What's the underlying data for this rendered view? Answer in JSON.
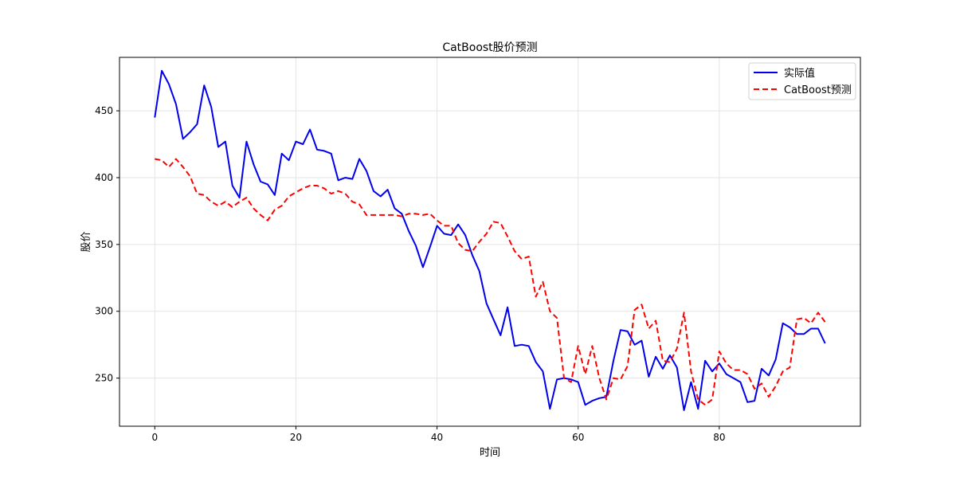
{
  "chart_data": {
    "type": "line",
    "title": "CatBoost股价预测",
    "xlabel": "时间",
    "ylabel": "股价",
    "xlim": [
      -5,
      100
    ],
    "ylim": [
      214,
      490
    ],
    "xticks": [
      0,
      20,
      40,
      60,
      80
    ],
    "yticks": [
      250,
      300,
      350,
      400,
      450
    ],
    "grid": true,
    "legend_position": "top-right",
    "series": [
      {
        "name": "实际值",
        "color": "#0000ee",
        "style": "solid",
        "x": [
          0,
          1,
          2,
          3,
          4,
          5,
          6,
          7,
          8,
          9,
          10,
          11,
          12,
          13,
          14,
          15,
          16,
          17,
          18,
          19,
          20,
          21,
          22,
          23,
          24,
          25,
          26,
          27,
          28,
          29,
          30,
          31,
          32,
          33,
          34,
          35,
          36,
          37,
          38,
          39,
          40,
          41,
          42,
          43,
          44,
          45,
          46,
          47,
          48,
          49,
          50,
          51,
          52,
          53,
          54,
          55,
          56,
          57,
          58,
          59,
          60,
          61,
          62,
          63,
          64,
          65,
          66,
          67,
          68,
          69,
          70,
          71,
          72,
          73,
          74,
          75,
          76,
          77,
          78,
          79,
          80,
          81,
          82,
          83,
          84,
          85,
          86,
          87,
          88,
          89,
          90,
          91,
          92,
          93,
          94,
          95
        ],
        "values": [
          445,
          480,
          470,
          455,
          429,
          434,
          440,
          469,
          453,
          423,
          427,
          394,
          385,
          427,
          410,
          397,
          395,
          387,
          418,
          413,
          427,
          425,
          436,
          421,
          420,
          418,
          398,
          400,
          399,
          414,
          405,
          390,
          386,
          391,
          377,
          373,
          360,
          349,
          333,
          348,
          364,
          358,
          357,
          365,
          357,
          342,
          330,
          306,
          294,
          282,
          303,
          274,
          275,
          274,
          262,
          255,
          227,
          249,
          250,
          249,
          247,
          230,
          233,
          235,
          236,
          263,
          286,
          285,
          275,
          278,
          251,
          266,
          257,
          267,
          258,
          226,
          247,
          227,
          263,
          255,
          261,
          253,
          250,
          247,
          232,
          233,
          257,
          252,
          264,
          291,
          288,
          283,
          283,
          287,
          287,
          276
        ]
      },
      {
        "name": "CatBoost预测",
        "color": "#ff0000",
        "style": "dashed",
        "x": [
          0,
          1,
          2,
          3,
          4,
          5,
          6,
          7,
          8,
          9,
          10,
          11,
          12,
          13,
          14,
          15,
          16,
          17,
          18,
          19,
          20,
          21,
          22,
          23,
          24,
          25,
          26,
          27,
          28,
          29,
          30,
          31,
          32,
          33,
          34,
          35,
          36,
          37,
          38,
          39,
          40,
          41,
          42,
          43,
          44,
          45,
          46,
          47,
          48,
          49,
          50,
          51,
          52,
          53,
          54,
          55,
          56,
          57,
          58,
          59,
          60,
          61,
          62,
          63,
          64,
          65,
          66,
          67,
          68,
          69,
          70,
          71,
          72,
          73,
          74,
          75,
          76,
          77,
          78,
          79,
          80,
          81,
          82,
          83,
          84,
          85,
          86,
          87,
          88,
          89,
          90,
          91,
          92,
          93,
          94,
          95
        ],
        "values": [
          414,
          413,
          408,
          414,
          408,
          401,
          388,
          387,
          382,
          379,
          382,
          378,
          382,
          385,
          377,
          372,
          368,
          376,
          379,
          386,
          389,
          392,
          394,
          394,
          392,
          388,
          390,
          388,
          382,
          380,
          372,
          372,
          372,
          372,
          372,
          371,
          373,
          373,
          372,
          373,
          368,
          364,
          364,
          351,
          346,
          345,
          352,
          358,
          367,
          366,
          356,
          345,
          339,
          341,
          311,
          322,
          300,
          295,
          250,
          247,
          274,
          253,
          274,
          250,
          234,
          250,
          249,
          259,
          301,
          305,
          287,
          293,
          263,
          262,
          272,
          299,
          255,
          234,
          230,
          234,
          270,
          261,
          256,
          256,
          253,
          242,
          246,
          236,
          244,
          255,
          258,
          294,
          295,
          291,
          299,
          292
        ]
      }
    ]
  }
}
